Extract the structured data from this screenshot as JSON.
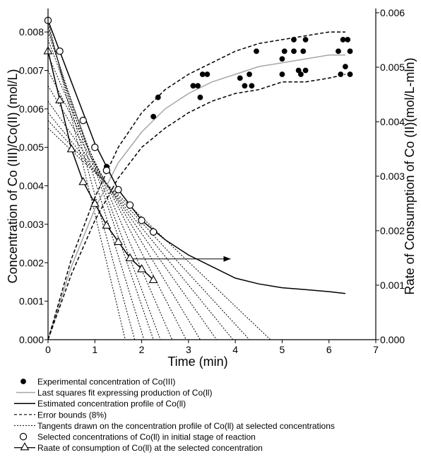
{
  "chart_data": {
    "type": "line",
    "x_axis": {
      "label": "Time (min)",
      "range": [
        0,
        7
      ],
      "ticks": [
        "0",
        "1",
        "2",
        "3",
        "4",
        "5",
        "6",
        "7"
      ]
    },
    "y_left": {
      "label": "Concentration of Co (III)/Co(II) (mol/L)",
      "range": [
        0,
        0.0085
      ],
      "ticks": [
        "0.000",
        "0.001",
        "0.002",
        "0.003",
        "0.004",
        "0.005",
        "0.006",
        "0.007",
        "0.008"
      ]
    },
    "y_right": {
      "label": "Rate of Consumption of Co (II)(mol/L-mln)",
      "range": [
        0,
        0.006
      ],
      "ticks": [
        "0.000",
        "0.001",
        "0.002",
        "0.003",
        "0.004",
        "0.005",
        "0.006"
      ]
    },
    "grid": false,
    "legend_position": "bottom",
    "series": [
      {
        "name": "Experimental concentration of Co(III)",
        "kind": "scatter",
        "axis": "left",
        "marker": "filled-circle",
        "points": [
          [
            1.25,
            0.0045
          ],
          [
            2.25,
            0.0058
          ],
          [
            2.35,
            0.0063
          ],
          [
            3.1,
            0.0066
          ],
          [
            3.1,
            0.0066
          ],
          [
            3.2,
            0.0066
          ],
          [
            3.25,
            0.0063
          ],
          [
            3.3,
            0.0069
          ],
          [
            3.4,
            0.0069
          ],
          [
            4.1,
            0.0068
          ],
          [
            4.3,
            0.0069
          ],
          [
            4.2,
            0.0066
          ],
          [
            4.35,
            0.0066
          ],
          [
            4.45,
            0.0075
          ],
          [
            5.0,
            0.0069
          ],
          [
            5.0,
            0.0073
          ],
          [
            5.05,
            0.0075
          ],
          [
            5.25,
            0.0075
          ],
          [
            5.25,
            0.0078
          ],
          [
            5.35,
            0.007
          ],
          [
            5.4,
            0.0069
          ],
          [
            5.45,
            0.0075
          ],
          [
            5.5,
            0.0078
          ],
          [
            5.5,
            0.007
          ],
          [
            6.2,
            0.0075
          ],
          [
            6.25,
            0.0069
          ],
          [
            6.3,
            0.0078
          ],
          [
            6.35,
            0.0071
          ],
          [
            6.4,
            0.0078
          ],
          [
            6.45,
            0.0069
          ],
          [
            6.45,
            0.0075
          ]
        ]
      },
      {
        "name": "Last squares fit expressing production of Co(ll)",
        "kind": "line",
        "axis": "left",
        "color": "#a6a6a6",
        "dash": "solid",
        "points": [
          [
            0,
            0
          ],
          [
            0.5,
            0.0019
          ],
          [
            1.0,
            0.0034
          ],
          [
            1.5,
            0.0046
          ],
          [
            2.0,
            0.0054
          ],
          [
            2.5,
            0.006
          ],
          [
            3.0,
            0.0064
          ],
          [
            3.5,
            0.0067
          ],
          [
            4.0,
            0.0069
          ],
          [
            4.5,
            0.0071
          ],
          [
            5.0,
            0.0072
          ],
          [
            5.5,
            0.0073
          ],
          [
            6.0,
            0.0074
          ],
          [
            6.35,
            0.0074
          ]
        ]
      },
      {
        "name": "Estimated concentration profile of Co(ll)",
        "kind": "line",
        "axis": "left",
        "color": "#000000",
        "dash": "solid",
        "points": [
          [
            0,
            0.0083
          ],
          [
            0.5,
            0.0067
          ],
          [
            1.0,
            0.0051
          ],
          [
            1.5,
            0.0039
          ],
          [
            2.0,
            0.0031
          ],
          [
            2.5,
            0.0026
          ],
          [
            3.0,
            0.0022
          ],
          [
            3.5,
            0.0019
          ],
          [
            4.0,
            0.0016
          ],
          [
            4.5,
            0.00145
          ],
          [
            5.0,
            0.00135
          ],
          [
            5.5,
            0.0013
          ],
          [
            6.0,
            0.00125
          ],
          [
            6.35,
            0.0012
          ]
        ]
      },
      {
        "name": "Error bounds (8%)",
        "kind": "line",
        "axis": "left",
        "color": "#000000",
        "dash": "dashed",
        "points": [
          [
            0,
            0
          ],
          [
            0.5,
            0.0021
          ],
          [
            1.0,
            0.0037
          ],
          [
            1.5,
            0.005
          ],
          [
            2.0,
            0.0059
          ],
          [
            2.5,
            0.0065
          ],
          [
            3.0,
            0.0069
          ],
          [
            3.5,
            0.0072
          ],
          [
            4.0,
            0.0075
          ],
          [
            4.5,
            0.0077
          ],
          [
            5.0,
            0.0078
          ],
          [
            5.5,
            0.0079
          ],
          [
            6.0,
            0.008
          ],
          [
            6.35,
            0.008
          ]
        ]
      },
      {
        "name": "",
        "kind": "line",
        "axis": "left",
        "color": "#000000",
        "dash": "dashed",
        "points": [
          [
            0,
            0
          ],
          [
            0.5,
            0.0017
          ],
          [
            1.0,
            0.0031
          ],
          [
            1.5,
            0.0042
          ],
          [
            2.0,
            0.005
          ],
          [
            2.5,
            0.0055
          ],
          [
            3.0,
            0.0059
          ],
          [
            3.5,
            0.0062
          ],
          [
            4.0,
            0.0064
          ],
          [
            4.5,
            0.0065
          ],
          [
            5.0,
            0.0067
          ],
          [
            5.5,
            0.0067
          ],
          [
            6.0,
            0.0068
          ],
          [
            6.35,
            0.0069
          ]
        ]
      },
      {
        "name": "Selected concentrations of Co(ll) in initial stage of reaction",
        "kind": "scatter",
        "axis": "left",
        "marker": "open-circle",
        "points": [
          [
            0,
            0.0083
          ],
          [
            0.25,
            0.0075
          ],
          [
            0.75,
            0.0057
          ],
          [
            1.0,
            0.005
          ],
          [
            1.25,
            0.0044
          ],
          [
            1.5,
            0.0039
          ],
          [
            1.75,
            0.0035
          ],
          [
            2.0,
            0.0031
          ],
          [
            2.25,
            0.0028
          ]
        ]
      },
      {
        "name": "Tangents drawn on the concentration profile of Co(ll) at selected concentrations",
        "kind": "lines",
        "axis": "left",
        "color": "#000000",
        "dash": "dotted",
        "segments": [
          [
            [
              0,
              0.0083
            ],
            [
              1.65,
              0
            ]
          ],
          [
            [
              0,
              0.0082
            ],
            [
              1.85,
              0
            ]
          ],
          [
            [
              0,
              0.0081
            ],
            [
              2.05,
              0
            ]
          ],
          [
            [
              0,
              0.008
            ],
            [
              2.25,
              0
            ]
          ],
          [
            [
              0,
              0.0078
            ],
            [
              2.4,
              0
            ]
          ],
          [
            [
              0,
              0.0074
            ],
            [
              2.65,
              0
            ]
          ],
          [
            [
              0,
              0.007
            ],
            [
              2.95,
              0
            ]
          ],
          [
            [
              0,
              0.0066
            ],
            [
              3.25,
              0
            ]
          ],
          [
            [
              0,
              0.0062
            ],
            [
              3.6,
              0
            ]
          ],
          [
            [
              0,
              0.0059
            ],
            [
              3.95,
              0
            ]
          ],
          [
            [
              0,
              0.0057
            ],
            [
              4.3,
              0
            ]
          ],
          [
            [
              0,
              0.0055
            ],
            [
              4.75,
              0
            ]
          ]
        ]
      },
      {
        "name": "Raate of consumption of Co(ll) at the selected concentration",
        "kind": "line",
        "axis": "right",
        "marker": "open-triangle",
        "color": "#000000",
        "dash": "solid",
        "points": [
          [
            0,
            0.0053
          ],
          [
            0.25,
            0.0044
          ],
          [
            0.5,
            0.0035
          ],
          [
            0.75,
            0.0029
          ],
          [
            1.0,
            0.0025
          ],
          [
            1.25,
            0.0021
          ],
          [
            1.5,
            0.0018
          ],
          [
            1.75,
            0.0015
          ],
          [
            2.0,
            0.0013
          ],
          [
            2.25,
            0.0011
          ]
        ]
      }
    ],
    "annotations": [
      {
        "type": "arrow",
        "from": [
          1.8,
          0.0021
        ],
        "to": [
          3.9,
          0.0021
        ]
      }
    ]
  }
}
